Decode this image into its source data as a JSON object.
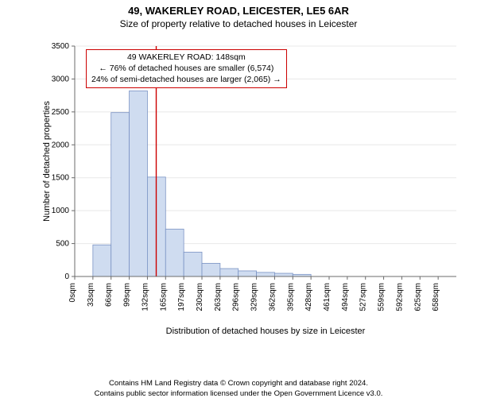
{
  "header": {
    "title": "49, WAKERLEY ROAD, LEICESTER, LE5 6AR",
    "subtitle": "Size of property relative to detached houses in Leicester"
  },
  "info_box": {
    "line1": "49 WAKERLEY ROAD: 148sqm",
    "line2": "← 76% of detached houses are smaller (6,574)",
    "line3": "24% of semi-detached houses are larger (2,065) →",
    "border_color": "#cc0000"
  },
  "chart": {
    "type": "histogram",
    "bar_fill": "#cfdcf0",
    "bar_stroke": "#7a93c4",
    "background_color": "#ffffff",
    "grid_color": "#e8e8e8",
    "axis_color": "#6b6b6b",
    "text_color": "#000000",
    "marker_line_color": "#cc0000",
    "marker_x": 148,
    "xlabel": "Distribution of detached houses by size in Leicester",
    "ylabel": "Number of detached properties",
    "ylim": [
      0,
      3500
    ],
    "ytick_step": 500,
    "x_categories": [
      "0sqm",
      "33sqm",
      "66sqm",
      "99sqm",
      "132sqm",
      "165sqm",
      "197sqm",
      "230sqm",
      "263sqm",
      "296sqm",
      "329sqm",
      "362sqm",
      "395sqm",
      "428sqm",
      "461sqm",
      "494sqm",
      "527sqm",
      "559sqm",
      "592sqm",
      "625sqm",
      "658sqm"
    ],
    "bin_width": 33,
    "values": [
      0,
      480,
      2490,
      2820,
      1510,
      720,
      370,
      200,
      120,
      85,
      62,
      48,
      32,
      0,
      0,
      0,
      0,
      0,
      0,
      0,
      0
    ],
    "label_fontsize": 11,
    "tick_fontsize": 10
  },
  "footer": {
    "line1": "Contains HM Land Registry data © Crown copyright and database right 2024.",
    "line2": "Contains public sector information licensed under the Open Government Licence v3.0."
  }
}
